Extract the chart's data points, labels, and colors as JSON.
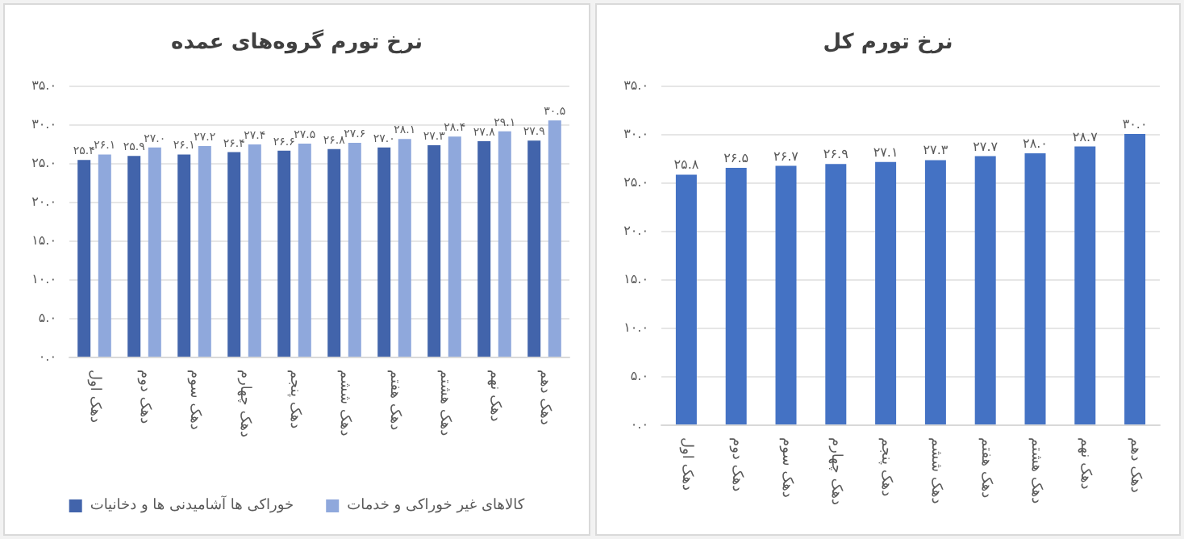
{
  "chart_data": [
    {
      "type": "bar",
      "title": "نرخ تورم گروه‌های عمده",
      "categories": [
        "دهک اول",
        "دهک دوم",
        "دهک سوم",
        "دهک چهارم",
        "دهک پنجم",
        "دهک ششم",
        "دهک هفتم",
        "دهک هشتم",
        "دهک نهم",
        "دهک دهم"
      ],
      "series": [
        {
          "name": "خوراکی ها آشامیدنی ها و دخانیات",
          "color": "#4264ab",
          "values": [
            25.4,
            25.9,
            26.1,
            26.4,
            26.6,
            26.8,
            27.0,
            27.3,
            27.8,
            27.9
          ],
          "value_labels": [
            "۲۵.۴",
            "۲۵.۹",
            "۲۶.۱",
            "۲۶.۴",
            "۲۶.۶",
            "۲۶.۸",
            "۲۷.۰",
            "۲۷.۳",
            "۲۷.۸",
            "۲۷.۹"
          ]
        },
        {
          "name": "کالاهای غیر خوراکی و خدمات",
          "color": "#8fa8dc",
          "values": [
            26.1,
            27.0,
            27.2,
            27.4,
            27.5,
            27.6,
            28.1,
            28.4,
            29.1,
            30.5
          ],
          "value_labels": [
            "۲۶.۱",
            "۲۷.۰",
            "۲۷.۲",
            "۲۷.۴",
            "۲۷.۵",
            "۲۷.۶",
            "۲۸.۱",
            "۲۸.۴",
            "۲۹.۱",
            "۳۰.۵"
          ]
        }
      ],
      "ylim": [
        0,
        35
      ],
      "yticks": [
        {
          "value": 0,
          "label": "۰.۰"
        },
        {
          "value": 5,
          "label": "۵.۰"
        },
        {
          "value": 10,
          "label": "۱۰.۰"
        },
        {
          "value": 15,
          "label": "۱۵.۰"
        },
        {
          "value": 20,
          "label": "۲۰.۰"
        },
        {
          "value": 25,
          "label": "۲۵.۰"
        },
        {
          "value": 30,
          "label": "۳۰.۰"
        },
        {
          "value": 35,
          "label": "۳۵.۰"
        }
      ],
      "grid": "y",
      "legend": "bottom"
    },
    {
      "type": "bar",
      "title": "نرخ تورم کل",
      "categories": [
        "دهک اول",
        "دهک دوم",
        "دهک سوم",
        "دهک چهارم",
        "دهک پنجم",
        "دهک ششم",
        "دهک هفتم",
        "دهک هشتم",
        "دهک نهم",
        "دهک دهم"
      ],
      "series": [
        {
          "color": "#4472c4",
          "values": [
            25.8,
            26.5,
            26.7,
            26.9,
            27.1,
            27.3,
            27.7,
            28.0,
            28.7,
            30.0
          ],
          "value_labels": [
            "۲۵.۸",
            "۲۶.۵",
            "۲۶.۷",
            "۲۶.۹",
            "۲۷.۱",
            "۲۷.۳",
            "۲۷.۷",
            "۲۸.۰",
            "۲۸.۷",
            "۳۰.۰"
          ]
        }
      ],
      "ylim": [
        0,
        35
      ],
      "yticks": [
        {
          "value": 0,
          "label": "۰.۰"
        },
        {
          "value": 5,
          "label": "۵.۰"
        },
        {
          "value": 10,
          "label": "۱۰.۰"
        },
        {
          "value": 15,
          "label": "۱۵.۰"
        },
        {
          "value": 20,
          "label": "۲۰.۰"
        },
        {
          "value": 25,
          "label": "۲۵.۰"
        },
        {
          "value": 30,
          "label": "۳۰.۰"
        },
        {
          "value": 35,
          "label": "۳۵.۰"
        }
      ],
      "grid": "y"
    }
  ]
}
